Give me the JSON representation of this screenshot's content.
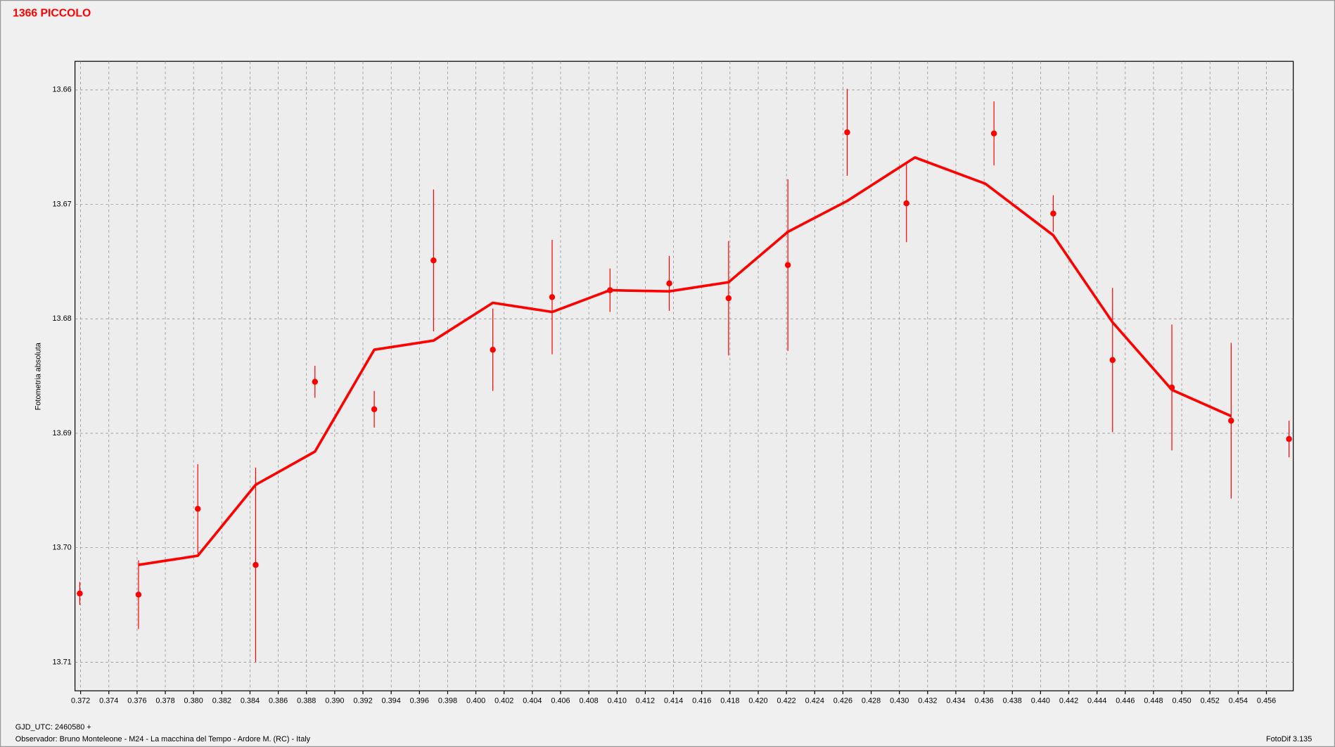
{
  "chart_data": {
    "type": "scatter",
    "title": "1366 PICCOLO",
    "y_label": "Fotometria absoluta",
    "footer_left": "GJD_UTC: 2460580 +",
    "footer_observer": "Observador: Bruno Monteleone - M24 - La macchina del Tempo - Ardore M. (RC) - Italy",
    "footer_right": "FotoDif 3.135",
    "color": "#ff0000",
    "grid": true,
    "y_inverted": true,
    "xlim": [
      0.3716,
      0.4579
    ],
    "ylim": [
      13.7125,
      13.6575
    ],
    "xticks": [
      0.372,
      0.374,
      0.376,
      0.378,
      {
        "value": 0.38,
        "label": "0.380"
      },
      0.382,
      0.384,
      0.386,
      0.388,
      {
        "value": 0.39,
        "label": "0.390"
      },
      0.392,
      0.394,
      0.396,
      0.398,
      {
        "value": 0.4,
        "label": "0.400"
      },
      0.402,
      0.404,
      0.406,
      0.408,
      {
        "value": 0.41,
        "label": "0.410"
      },
      0.412,
      0.414,
      0.416,
      0.418,
      {
        "value": 0.42,
        "label": "0.420"
      },
      0.422,
      0.424,
      0.426,
      0.428,
      {
        "value": 0.43,
        "label": "0.430"
      },
      0.432,
      0.434,
      0.436,
      0.438,
      {
        "value": 0.44,
        "label": "0.440"
      },
      0.442,
      0.444,
      0.446,
      0.448,
      {
        "value": 0.45,
        "label": "0.450"
      },
      0.452,
      0.454,
      0.456
    ],
    "yticks": [
      13.66,
      13.67,
      13.68,
      13.69,
      {
        "value": 13.7,
        "label": "13.70"
      },
      13.71
    ],
    "points": {
      "x": [
        0.37194,
        0.3761,
        0.3803,
        0.3844,
        0.3886,
        0.3928,
        0.397,
        0.4012,
        0.4054,
        0.4095,
        0.4137,
        0.4179,
        0.4221,
        0.4263,
        0.4305,
        0.4367,
        0.4409,
        0.4451,
        0.4493,
        0.4535,
        0.4576
      ],
      "values": [
        13.704,
        13.7041,
        13.6966,
        13.7015,
        13.6855,
        13.6879,
        13.6749,
        13.6827,
        13.6781,
        13.6775,
        13.6769,
        13.6782,
        13.6753,
        13.6637,
        13.6699,
        13.6638,
        13.6708,
        13.6836,
        13.686,
        13.6889,
        13.6905
      ],
      "errors": [
        0.001,
        0.003,
        0.0039,
        0.0085,
        0.0014,
        0.0016,
        0.0062,
        0.0036,
        0.005,
        0.0019,
        0.0024,
        0.005,
        0.0075,
        0.0038,
        0.0034,
        0.0028,
        0.0016,
        0.0063,
        0.0055,
        0.0068,
        0.0016
      ]
    },
    "trend": {
      "x": [
        0.3761,
        0.3803,
        0.3844,
        0.3886,
        0.3928,
        0.397,
        0.4012,
        0.4054,
        0.4095,
        0.4137,
        0.4179,
        0.4221,
        0.4263,
        0.4311,
        0.4361,
        0.4409,
        0.4451,
        0.4493,
        0.4535
      ],
      "values": [
        13.7015,
        13.7007,
        13.6945,
        13.6916,
        13.6827,
        13.6819,
        13.6786,
        13.6794,
        13.6775,
        13.6776,
        13.6768,
        13.6724,
        13.6697,
        13.6659,
        13.6682,
        13.6727,
        13.6803,
        13.6862,
        13.6885
      ]
    }
  }
}
